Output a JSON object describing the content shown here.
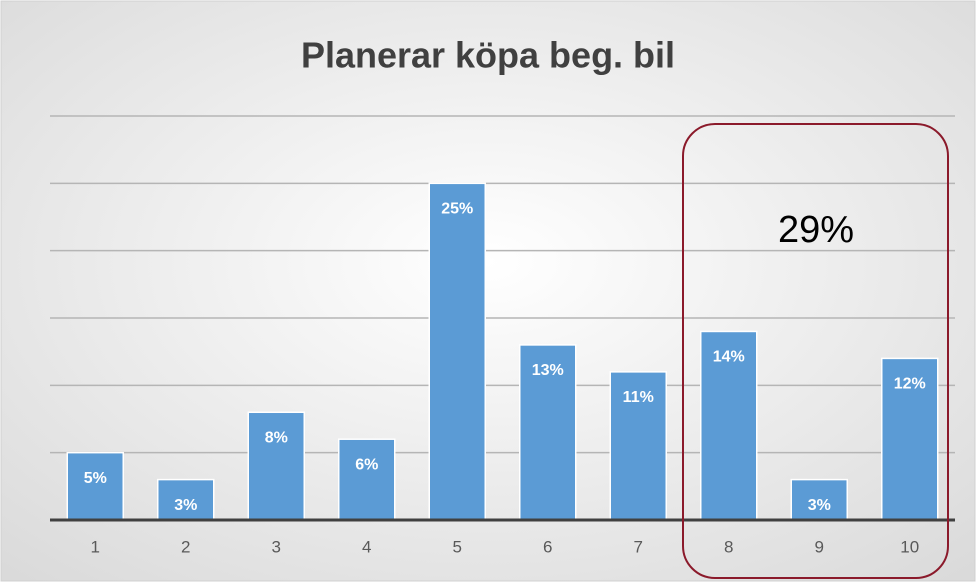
{
  "chart_data": {
    "type": "bar",
    "title": "Planerar köpa beg. bil",
    "categories": [
      "1",
      "2",
      "3",
      "4",
      "5",
      "6",
      "7",
      "8",
      "9",
      "10"
    ],
    "values": [
      5,
      3,
      8,
      6,
      25,
      13,
      11,
      14,
      3,
      12
    ],
    "value_labels": [
      "5%",
      "3%",
      "8%",
      "6%",
      "25%",
      "13%",
      "11%",
      "14%",
      "3%",
      "12%"
    ],
    "color": "#5b9bd5",
    "ylim": [
      0,
      30
    ],
    "yticks": [
      0,
      5,
      10,
      15,
      20,
      25,
      30
    ],
    "grid": true,
    "annotation": "29%"
  }
}
